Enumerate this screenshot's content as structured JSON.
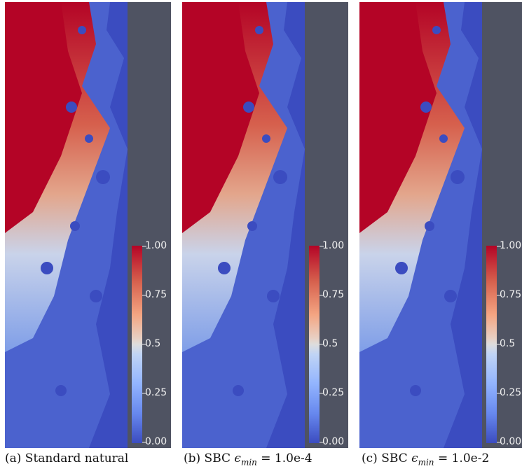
{
  "panels": [
    {
      "colorbar": {
        "labels": [
          "1.00",
          "0.75",
          "0.5",
          "0.25",
          "0.00"
        ]
      },
      "caption": {
        "prefix": "(a) Standard natural",
        "symbol": "",
        "subscript": "",
        "suffix": ""
      }
    },
    {
      "colorbar": {
        "labels": [
          "1.00",
          "0.75",
          "0.5",
          "0.25",
          "0.00"
        ]
      },
      "caption": {
        "prefix": "(b) SBC ",
        "symbol": "ϵ",
        "subscript": "min",
        "suffix": " = 1.0e-4"
      }
    },
    {
      "colorbar": {
        "labels": [
          "1.00",
          "0.75",
          "0.5",
          "0.25",
          "0.00"
        ]
      },
      "caption": {
        "prefix": "(c) SBC ",
        "symbol": "ϵ",
        "subscript": "min",
        "suffix": " = 1.0e-2"
      }
    }
  ],
  "colors": {
    "frame": "#4f5362",
    "low": "#3b4cc0",
    "mid": "#dddddd",
    "high": "#b40426"
  },
  "colorbar_range": [
    0,
    1
  ]
}
